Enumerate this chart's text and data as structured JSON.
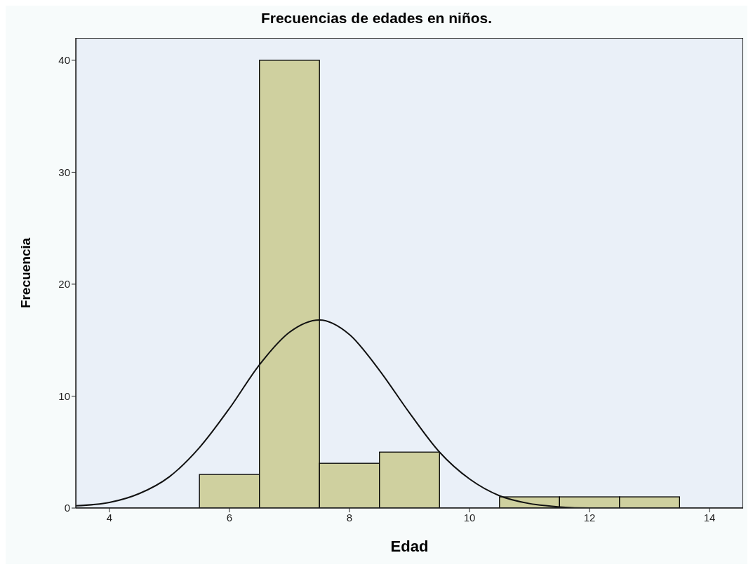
{
  "chart_data": {
    "type": "histogram",
    "title": "Frecuencias de edades en niños.",
    "xlabel": "Edad",
    "ylabel": "Frecuencia",
    "bins": [
      5.5,
      6.5,
      7.5,
      8.5,
      9.5,
      10.5,
      11.5,
      12.5,
      13.5
    ],
    "values": [
      3,
      40,
      4,
      5,
      0,
      1,
      1,
      1
    ],
    "color": "#cfd09f",
    "series": [
      {
        "type": "line",
        "color": "#111111",
        "x": [
          3.44,
          4,
          4.5,
          5,
          5.5,
          6,
          6.5,
          7,
          7.5,
          8,
          8.5,
          9,
          9.5,
          10,
          10.5,
          11,
          11.5,
          12,
          13,
          14,
          14.56
        ],
        "values": [
          0.2,
          0.5,
          1.3,
          2.8,
          5.4,
          8.9,
          12.8,
          15.7,
          16.8,
          15.5,
          12.3,
          8.5,
          5.0,
          2.6,
          1.1,
          0.4,
          0.1,
          0,
          0,
          0,
          0
        ]
      }
    ],
    "xlim": [
      3.44,
      14.56
    ],
    "xticks": [
      4,
      6,
      8,
      10,
      12,
      14
    ],
    "ylim": [
      0,
      42
    ],
    "yticks": [
      0,
      10,
      20,
      30,
      40
    ],
    "grid": false,
    "legend": false,
    "marker": "none",
    "line_style": "solid"
  }
}
